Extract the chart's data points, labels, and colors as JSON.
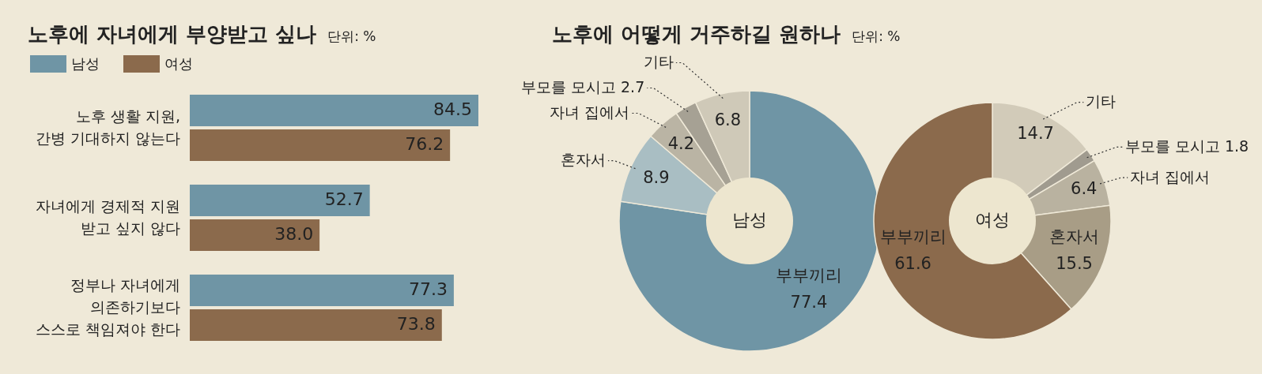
{
  "chart_data": [
    {
      "type": "bar",
      "orientation": "horizontal",
      "title": "노후에 자녀에게 부양받고 싶나",
      "subtitle": "단위: %",
      "legend": "top left",
      "categories": [
        "노후 생활 지원,\n간병 기대하지 않는다",
        "자녀에게 경제적 지원\n받고 싶지 않다",
        "정부나 자녀에게\n의존하기보다\n스스로 책임져야 한다"
      ],
      "series": [
        {
          "name": "남성",
          "color": "#6f95a5",
          "values": [
            84.5,
            52.7,
            77.3
          ],
          "value_labels": [
            "84.5",
            "52.7",
            "77.3"
          ]
        },
        {
          "name": "여성",
          "color": "#8b6a4c",
          "values": [
            76.2,
            38.0,
            73.8
          ],
          "value_labels": [
            "76.2",
            "38.0",
            "73.8"
          ]
        }
      ]
    },
    {
      "type": "donut",
      "title": "노후에 어떻게 거주하길 원하나",
      "subtitle": "단위: %",
      "annotations": [
        "남성"
      ],
      "categories": [
        "부부끼리",
        "혼자서",
        "자녀 집에서",
        "부모를 모시고",
        "기타"
      ],
      "values": [
        77.4,
        8.9,
        4.2,
        2.7,
        6.8
      ],
      "value_labels": [
        "77.4",
        "8.9",
        "4.2",
        "2.7",
        "6.8"
      ],
      "colors": [
        "#6f95a5",
        "#a9bec3",
        "#bab4a4",
        "#a6a194",
        "#cfc9b8"
      ]
    },
    {
      "type": "donut",
      "annotations": [
        "여성"
      ],
      "categories": [
        "기타",
        "부모를 모시고",
        "자녀 집에서",
        "혼자서",
        "부부끼리"
      ],
      "values": [
        14.7,
        1.8,
        6.4,
        15.5,
        61.6
      ],
      "value_labels": [
        "14.7",
        "1.8",
        "6.4",
        "15.5",
        "61.6"
      ],
      "colors": [
        "#d2cbb9",
        "#a09b8f",
        "#b9b2a0",
        "#a89d86",
        "#8b6a4c"
      ]
    }
  ]
}
